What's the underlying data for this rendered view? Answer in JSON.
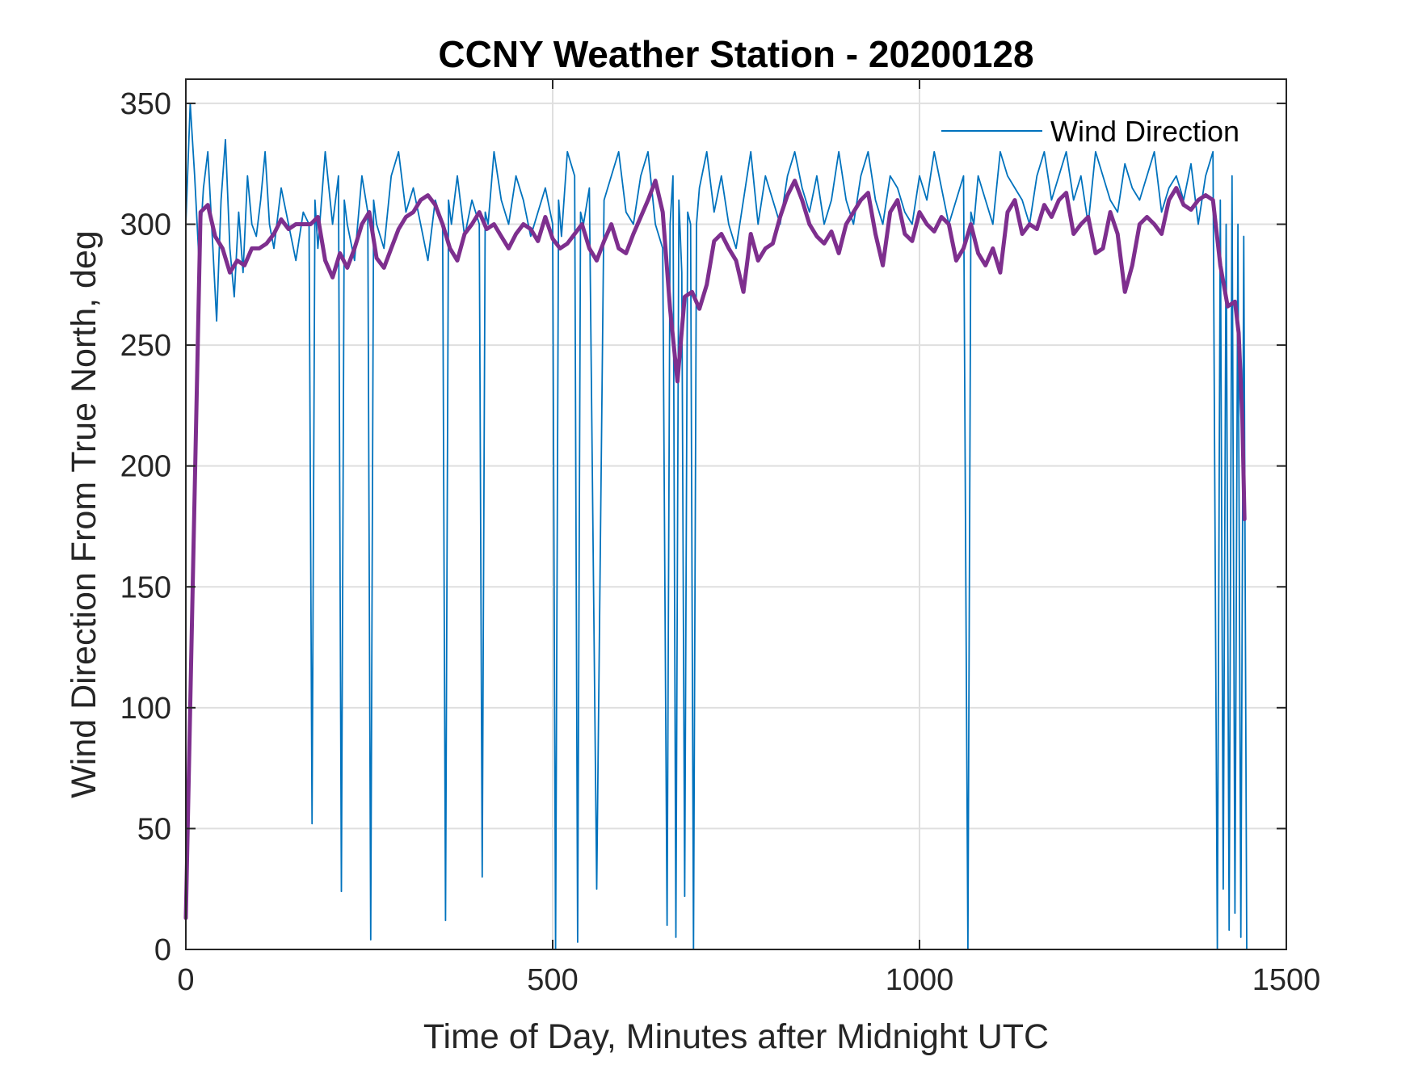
{
  "chart_data": {
    "type": "line",
    "title": "CCNY Weather Station - 20200128",
    "xlabel": "Time of Day, Minutes after Midnight UTC",
    "ylabel": "Wind Direction From True North, deg",
    "xlim": [
      0,
      1500
    ],
    "ylim": [
      0,
      360
    ],
    "xticks": [
      0,
      500,
      1000,
      1500
    ],
    "yticks": [
      0,
      50,
      100,
      150,
      200,
      250,
      300,
      350
    ],
    "grid": true,
    "legend": {
      "position": "top-right",
      "entries": [
        "Wind Direction"
      ]
    },
    "series": [
      {
        "name": "Wind Direction",
        "color": "#0072BD",
        "style": "thin line, raw 1-minute samples (approximate reconstruction)",
        "x": [
          0,
          6,
          12,
          18,
          24,
          30,
          36,
          42,
          48,
          54,
          60,
          66,
          72,
          78,
          84,
          90,
          96,
          102,
          108,
          114,
          120,
          130,
          140,
          150,
          160,
          168,
          172,
          176,
          180,
          190,
          200,
          208,
          212,
          216,
          220,
          230,
          240,
          248,
          252,
          256,
          260,
          270,
          280,
          290,
          300,
          310,
          320,
          330,
          340,
          350,
          354,
          358,
          362,
          370,
          380,
          390,
          400,
          404,
          408,
          412,
          420,
          430,
          440,
          450,
          460,
          470,
          480,
          490,
          500,
          504,
          508,
          512,
          520,
          530,
          534,
          538,
          542,
          550,
          560,
          570,
          580,
          590,
          600,
          610,
          620,
          630,
          640,
          650,
          656,
          660,
          664,
          668,
          672,
          676,
          680,
          684,
          688,
          692,
          696,
          700,
          710,
          720,
          730,
          740,
          750,
          760,
          770,
          780,
          790,
          800,
          810,
          820,
          830,
          840,
          850,
          860,
          870,
          880,
          890,
          900,
          910,
          920,
          930,
          940,
          950,
          960,
          970,
          980,
          990,
          1000,
          1010,
          1020,
          1030,
          1040,
          1050,
          1060,
          1066,
          1070,
          1074,
          1080,
          1090,
          1100,
          1110,
          1120,
          1130,
          1140,
          1150,
          1160,
          1170,
          1180,
          1190,
          1200,
          1210,
          1220,
          1230,
          1240,
          1250,
          1260,
          1270,
          1280,
          1290,
          1300,
          1310,
          1320,
          1330,
          1340,
          1350,
          1360,
          1370,
          1380,
          1390,
          1400,
          1406,
          1410,
          1414,
          1418,
          1422,
          1426,
          1430,
          1434,
          1438,
          1442,
          1446
        ],
        "y": [
          300,
          350,
          320,
          285,
          315,
          330,
          295,
          260,
          310,
          335,
          290,
          270,
          305,
          280,
          320,
          300,
          295,
          310,
          330,
          300,
          290,
          315,
          300,
          285,
          305,
          300,
          52,
          310,
          290,
          330,
          300,
          320,
          24,
          310,
          300,
          285,
          320,
          305,
          4,
          310,
          300,
          290,
          320,
          330,
          305,
          315,
          300,
          285,
          310,
          300,
          12,
          310,
          300,
          320,
          295,
          310,
          300,
          30,
          305,
          300,
          330,
          310,
          300,
          320,
          310,
          295,
          305,
          315,
          300,
          0,
          310,
          295,
          330,
          320,
          3,
          305,
          300,
          315,
          25,
          310,
          320,
          330,
          305,
          300,
          320,
          330,
          300,
          290,
          10,
          300,
          320,
          5,
          310,
          280,
          22,
          305,
          300,
          0,
          300,
          315,
          330,
          305,
          320,
          300,
          290,
          310,
          330,
          300,
          320,
          310,
          300,
          320,
          330,
          315,
          305,
          320,
          300,
          310,
          330,
          310,
          300,
          320,
          330,
          310,
          300,
          320,
          315,
          305,
          300,
          320,
          310,
          330,
          315,
          300,
          310,
          320,
          0,
          305,
          300,
          320,
          310,
          300,
          330,
          320,
          315,
          310,
          300,
          320,
          330,
          310,
          320,
          330,
          310,
          320,
          300,
          330,
          320,
          310,
          305,
          325,
          315,
          310,
          320,
          330,
          305,
          315,
          320,
          310,
          325,
          300,
          320,
          330,
          0,
          310,
          25,
          300,
          8,
          320,
          15,
          300,
          5,
          295,
          0
        ]
      },
      {
        "name": "",
        "color": "#7E2F8E",
        "style": "thick line, smoothed",
        "x": [
          0,
          10,
          20,
          30,
          40,
          50,
          60,
          70,
          80,
          90,
          100,
          110,
          120,
          130,
          140,
          150,
          160,
          170,
          180,
          190,
          200,
          210,
          220,
          230,
          240,
          250,
          260,
          270,
          280,
          290,
          300,
          310,
          320,
          330,
          340,
          350,
          360,
          370,
          380,
          390,
          400,
          410,
          420,
          430,
          440,
          450,
          460,
          470,
          480,
          490,
          500,
          510,
          520,
          530,
          540,
          550,
          560,
          570,
          580,
          590,
          600,
          610,
          620,
          630,
          640,
          650,
          660,
          670,
          680,
          690,
          700,
          710,
          720,
          730,
          740,
          750,
          760,
          770,
          780,
          790,
          800,
          810,
          820,
          830,
          840,
          850,
          860,
          870,
          880,
          890,
          900,
          910,
          920,
          930,
          940,
          950,
          960,
          970,
          980,
          990,
          1000,
          1010,
          1020,
          1030,
          1040,
          1050,
          1060,
          1070,
          1080,
          1090,
          1100,
          1110,
          1120,
          1130,
          1140,
          1150,
          1160,
          1170,
          1180,
          1190,
          1200,
          1210,
          1220,
          1230,
          1240,
          1250,
          1260,
          1270,
          1280,
          1290,
          1300,
          1310,
          1320,
          1330,
          1340,
          1350,
          1360,
          1370,
          1380,
          1390,
          1400,
          1410,
          1420,
          1430,
          1435,
          1440,
          1443
        ],
        "y": [
          13,
          160,
          305,
          308,
          295,
          290,
          280,
          285,
          283,
          290,
          290,
          292,
          296,
          302,
          298,
          300,
          300,
          300,
          303,
          285,
          278,
          288,
          282,
          290,
          300,
          305,
          286,
          282,
          290,
          298,
          303,
          305,
          310,
          312,
          308,
          300,
          290,
          285,
          296,
          300,
          305,
          298,
          300,
          295,
          290,
          296,
          300,
          298,
          293,
          303,
          294,
          290,
          292,
          296,
          300,
          290,
          285,
          293,
          300,
          290,
          288,
          296,
          303,
          310,
          318,
          305,
          265,
          235,
          270,
          272,
          265,
          275,
          293,
          296,
          290,
          285,
          272,
          296,
          285,
          290,
          292,
          303,
          312,
          318,
          310,
          300,
          295,
          292,
          297,
          288,
          300,
          305,
          310,
          313,
          296,
          283,
          305,
          310,
          296,
          293,
          305,
          300,
          297,
          303,
          300,
          285,
          290,
          300,
          288,
          283,
          290,
          280,
          305,
          310,
          296,
          300,
          298,
          308,
          303,
          310,
          313,
          296,
          300,
          303,
          288,
          290,
          305,
          296,
          272,
          283,
          300,
          303,
          300,
          296,
          310,
          315,
          308,
          306,
          310,
          312,
          310,
          283,
          266,
          268,
          255,
          220,
          178
        ]
      }
    ]
  }
}
